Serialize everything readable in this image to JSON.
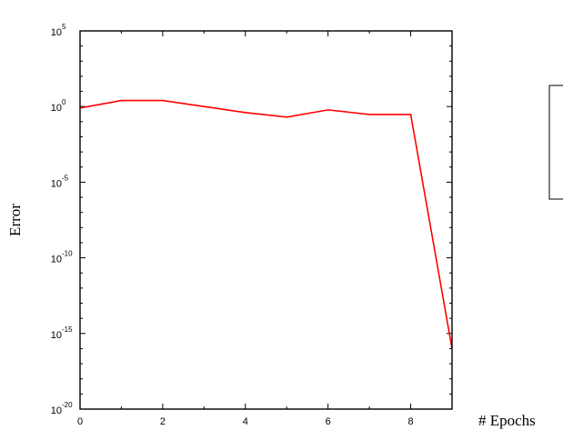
{
  "chart_data": {
    "type": "line",
    "title": "",
    "xlabel": "# Epochs",
    "ylabel": "Error",
    "xlim": [
      0,
      9
    ],
    "ylim": [
      1e-20,
      100000.0
    ],
    "yscale": "log",
    "grid": false,
    "x_ticks": [
      0,
      2,
      4,
      6,
      8
    ],
    "y_ticks": [
      {
        "base": "10",
        "exp": "-20",
        "value": 1e-20
      },
      {
        "base": "10",
        "exp": "-15",
        "value": 1e-15
      },
      {
        "base": "10",
        "exp": "-10",
        "value": 1e-10
      },
      {
        "base": "10",
        "exp": "-5",
        "value": 1e-05
      },
      {
        "base": "10",
        "exp": "0",
        "value": 1
      },
      {
        "base": "10",
        "exp": "5",
        "value": 100000.0
      }
    ],
    "series": [
      {
        "color": "#ff0000",
        "x": [
          0,
          1,
          2,
          3,
          4,
          5,
          6,
          7,
          8,
          9
        ],
        "y": [
          0.8,
          2.5,
          2.5,
          1.0,
          0.4,
          0.2,
          0.6,
          0.3,
          0.3,
          1e-16
        ]
      }
    ],
    "legend": {
      "placement": "right",
      "entries": []
    }
  }
}
